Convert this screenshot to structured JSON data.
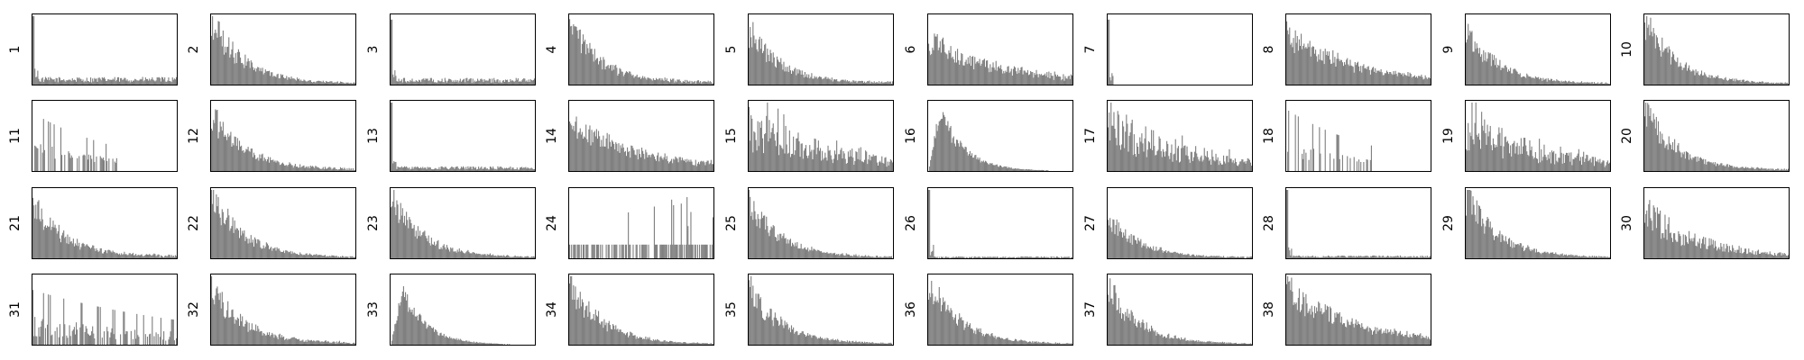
{
  "chart_data": {
    "type": "bar",
    "description_of_style": "grid of 38 small histograms, gray bars, no axes ticks",
    "bar_color": "#808080",
    "panels": [
      {
        "label": "1",
        "shape": "spike",
        "peak": 1.0,
        "tail": 0.08
      },
      {
        "label": "2",
        "shape": "decay",
        "peak": 0.95,
        "tail": 0.05
      },
      {
        "label": "3",
        "shape": "spike",
        "peak": 0.95,
        "tail": 0.07
      },
      {
        "label": "4",
        "shape": "decay",
        "peak": 0.85,
        "tail": 0.1
      },
      {
        "label": "5",
        "shape": "decay",
        "peak": 0.8,
        "tail": 0.08
      },
      {
        "label": "6",
        "shape": "flat-decay",
        "peak": 0.75,
        "tail": 0.15
      },
      {
        "label": "7",
        "shape": "spike",
        "peak": 0.95,
        "tail": 0.0
      },
      {
        "label": "8",
        "shape": "flat-decay",
        "peak": 0.85,
        "tail": 0.1
      },
      {
        "label": "9",
        "shape": "decay",
        "peak": 0.8,
        "tail": 0.05
      },
      {
        "label": "10",
        "shape": "decay",
        "peak": 0.95,
        "tail": 0.05
      },
      {
        "label": "11",
        "shape": "sparse",
        "peak": 0.85,
        "tail": 0.0
      },
      {
        "label": "12",
        "shape": "decay",
        "peak": 0.85,
        "tail": 0.08
      },
      {
        "label": "13",
        "shape": "spike",
        "peak": 1.0,
        "tail": 0.05
      },
      {
        "label": "14",
        "shape": "flat-decay",
        "peak": 0.8,
        "tail": 0.15
      },
      {
        "label": "15",
        "shape": "noisy",
        "peak": 0.9,
        "tail": 0.2
      },
      {
        "label": "16",
        "shape": "bell-decay",
        "peak": 0.95,
        "tail": 0.03
      },
      {
        "label": "17",
        "shape": "noisy",
        "peak": 0.9,
        "tail": 0.15
      },
      {
        "label": "18",
        "shape": "sparse",
        "peak": 0.9,
        "tail": 0.0
      },
      {
        "label": "19",
        "shape": "noisy",
        "peak": 0.85,
        "tail": 0.1
      },
      {
        "label": "20",
        "shape": "decay",
        "peak": 0.9,
        "tail": 0.05
      },
      {
        "label": "21",
        "shape": "decay",
        "peak": 0.8,
        "tail": 0.1
      },
      {
        "label": "22",
        "shape": "decay",
        "peak": 0.95,
        "tail": 0.04
      },
      {
        "label": "23",
        "shape": "decay",
        "peak": 0.9,
        "tail": 0.05
      },
      {
        "label": "24",
        "shape": "sparse-flat",
        "peak": 0.95,
        "tail": 0.2
      },
      {
        "label": "25",
        "shape": "decay",
        "peak": 0.85,
        "tail": 0.05
      },
      {
        "label": "26",
        "shape": "spike",
        "peak": 1.0,
        "tail": 0.02
      },
      {
        "label": "27",
        "shape": "decay",
        "peak": 0.6,
        "tail": 0.04
      },
      {
        "label": "28",
        "shape": "spike",
        "peak": 1.0,
        "tail": 0.03
      },
      {
        "label": "29",
        "shape": "decay",
        "peak": 0.95,
        "tail": 0.04
      },
      {
        "label": "30",
        "shape": "noisy-decay",
        "peak": 0.85,
        "tail": 0.15
      },
      {
        "label": "31",
        "shape": "sparse-noisy",
        "peak": 0.8,
        "tail": 0.1
      },
      {
        "label": "32",
        "shape": "decay",
        "peak": 0.85,
        "tail": 0.08
      },
      {
        "label": "33",
        "shape": "bell-decay",
        "peak": 0.85,
        "tail": 0.03
      },
      {
        "label": "34",
        "shape": "decay",
        "peak": 0.95,
        "tail": 0.03
      },
      {
        "label": "35",
        "shape": "decay",
        "peak": 0.85,
        "tail": 0.04
      },
      {
        "label": "36",
        "shape": "decay",
        "peak": 0.95,
        "tail": 0.03
      },
      {
        "label": "37",
        "shape": "decay",
        "peak": 0.85,
        "tail": 0.03
      },
      {
        "label": "38",
        "shape": "flat-decay",
        "peak": 0.95,
        "tail": 0.08
      }
    ]
  }
}
